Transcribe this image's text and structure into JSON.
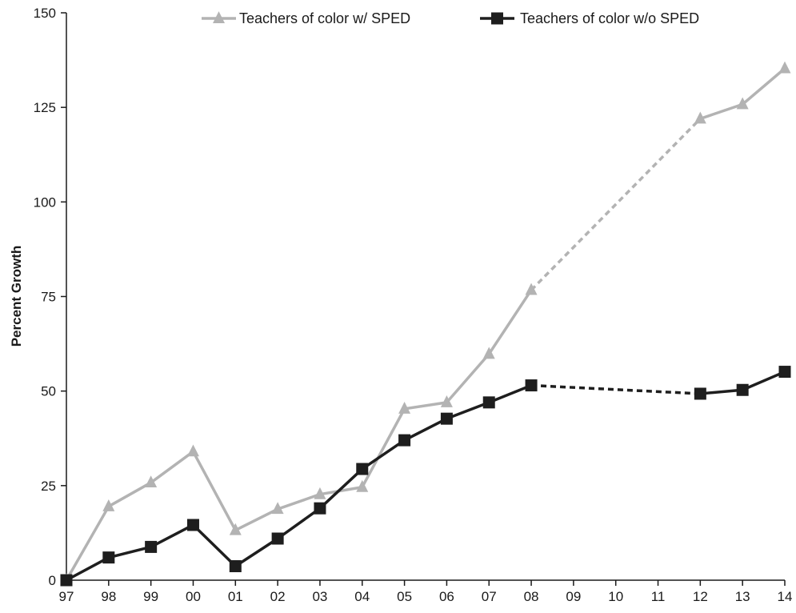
{
  "chart_data": {
    "type": "line",
    "title": "",
    "xlabel": "",
    "ylabel": "Percent Growth",
    "ylim": [
      0,
      150
    ],
    "yticks": [
      0,
      25,
      50,
      75,
      100,
      125,
      150
    ],
    "categories": [
      "97",
      "98",
      "99",
      "00",
      "01",
      "02",
      "03",
      "04",
      "05",
      "06",
      "07",
      "08",
      "09",
      "10",
      "11",
      "12",
      "13",
      "14"
    ],
    "grid": false,
    "legend_position": "top",
    "series": [
      {
        "name": "Teachers of color w/ SPED",
        "color": "#b3b3b3",
        "marker": "triangle",
        "values": [
          0,
          19.5,
          25.8,
          34,
          13.2,
          18.8,
          22.7,
          24.6,
          45.3,
          47,
          59.8,
          76.7,
          null,
          null,
          null,
          122,
          125.8,
          135.3
        ],
        "gap_style": "dashed"
      },
      {
        "name": "Teachers of color w/o SPED",
        "color": "#1e1e1e",
        "marker": "square",
        "values": [
          0,
          6,
          8.8,
          14.6,
          3.7,
          11,
          19,
          29.4,
          37,
          42.7,
          47,
          51.5,
          null,
          null,
          null,
          49.3,
          50.3,
          55.1
        ],
        "gap_style": "dashed"
      }
    ]
  }
}
